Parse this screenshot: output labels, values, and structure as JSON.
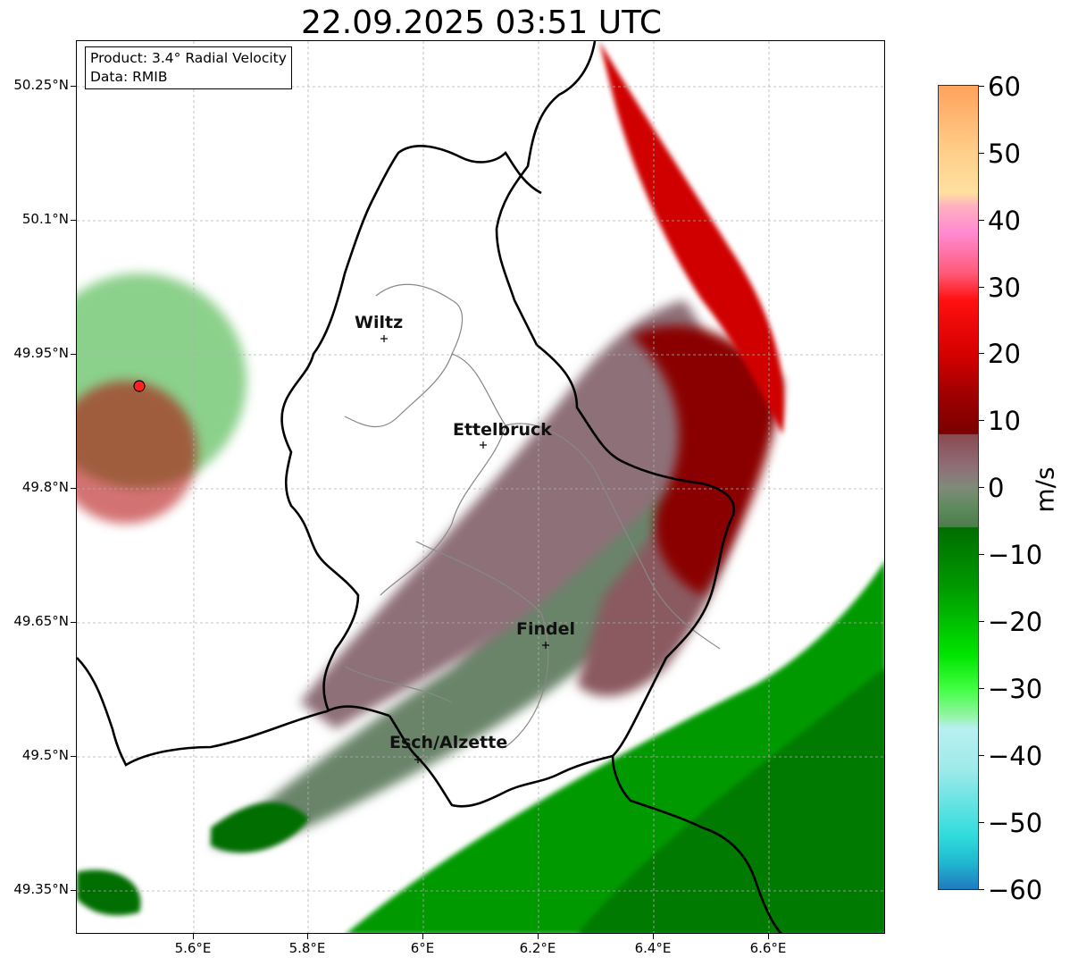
{
  "title": "22.09.2025 03:51 UTC",
  "info_box": {
    "product_line": "Product: 3.4° Radial Velocity",
    "data_line": "Data: RMIB"
  },
  "axes": {
    "lat_labels": [
      "50.25°N",
      "50.1°N",
      "49.95°N",
      "49.8°N",
      "49.65°N",
      "49.5°N",
      "49.35°N"
    ],
    "lon_labels": [
      "5.6°E",
      "5.8°E",
      "6°E",
      "6.2°E",
      "6.4°E",
      "6.6°E"
    ]
  },
  "colorbar": {
    "unit": "m/s",
    "tick_labels": [
      "60",
      "50",
      "40",
      "30",
      "20",
      "10",
      "0",
      "−10",
      "−20",
      "−30",
      "−40",
      "−50",
      "−60"
    ],
    "range": [
      -60,
      60
    ],
    "stops": [
      {
        "v": 60,
        "c": "#ffa25c"
      },
      {
        "v": 50,
        "c": "#ffcf8a"
      },
      {
        "v": 44,
        "c": "#ffe0a0"
      },
      {
        "v": 42,
        "c": "#ffb0c0"
      },
      {
        "v": 38,
        "c": "#ff8ad0"
      },
      {
        "v": 32,
        "c": "#ff5a78"
      },
      {
        "v": 28,
        "c": "#ff1010"
      },
      {
        "v": 20,
        "c": "#d60000"
      },
      {
        "v": 14,
        "c": "#a00000"
      },
      {
        "v": 8,
        "c": "#7a0000"
      },
      {
        "v": 7.9,
        "c": "#8c4a52"
      },
      {
        "v": 3,
        "c": "#8e6f78"
      },
      {
        "v": 0,
        "c": "#7f8a78"
      },
      {
        "v": -3,
        "c": "#5f8a5e"
      },
      {
        "v": -5.9,
        "c": "#4e7c4c"
      },
      {
        "v": -6,
        "c": "#006e00"
      },
      {
        "v": -15,
        "c": "#009a00"
      },
      {
        "v": -25,
        "c": "#00e400"
      },
      {
        "v": -30,
        "c": "#40ff40"
      },
      {
        "v": -34,
        "c": "#90f5a0"
      },
      {
        "v": -36,
        "c": "#b8f0f0"
      },
      {
        "v": -42,
        "c": "#a0eaea"
      },
      {
        "v": -52,
        "c": "#30dcdc"
      },
      {
        "v": -56,
        "c": "#20b8d0"
      },
      {
        "v": -60,
        "c": "#1f7ac0"
      }
    ]
  },
  "cities": [
    {
      "name": "Wiltz"
    },
    {
      "name": "Ettelbruck"
    },
    {
      "name": "Findel"
    },
    {
      "name": "Esch/Alzette"
    }
  ],
  "radar_site_color": "#ff2020",
  "colors": {
    "strong_red": "#c00000",
    "dark_red": "#7a0000",
    "pink_gray": "#8e6f78",
    "gray_green": "#6a846a",
    "dark_green": "#006e00",
    "bright_green": "#00c000"
  }
}
